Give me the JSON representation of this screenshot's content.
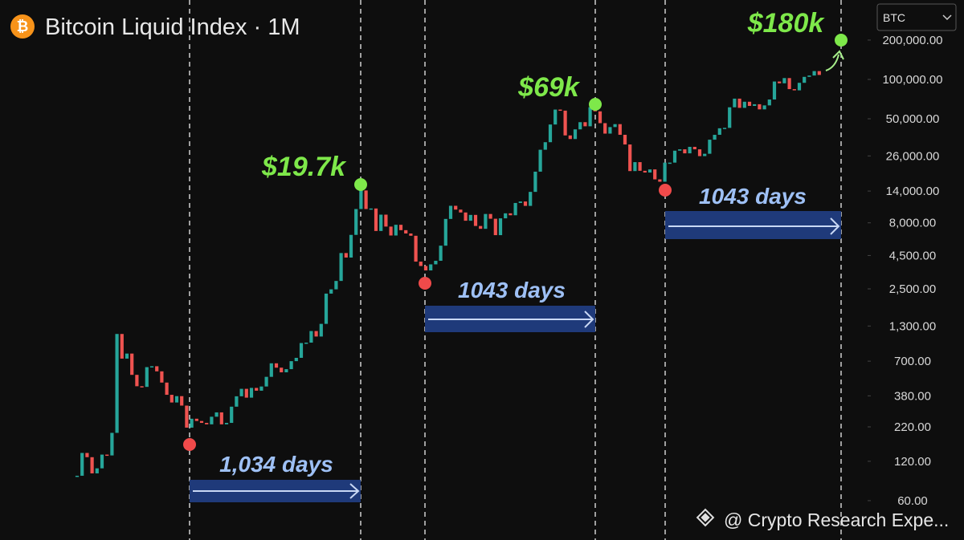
{
  "chart_data": {
    "type": "candlestick",
    "title": "Bitcoin Liquid Index · 1M",
    "symbol": "BTC",
    "watermark": "@ Crypto Research Expe...",
    "log_scale": true,
    "up_color": "#26a69a",
    "down_color": "#ef5350",
    "ylim": [
      30,
      405000
    ],
    "yticks": [
      {
        "value": 200000,
        "label": "200,000.00"
      },
      {
        "value": 100000,
        "label": "100,000.00"
      },
      {
        "value": 50000,
        "label": "50,000.00"
      },
      {
        "value": 26000,
        "label": "26,000.00"
      },
      {
        "value": 14000,
        "label": "14,000.00"
      },
      {
        "value": 8000,
        "label": "8,000.00"
      },
      {
        "value": 4500,
        "label": "4,500.00"
      },
      {
        "value": 2500,
        "label": "2,500.00"
      },
      {
        "value": 1300,
        "label": "1,300.00"
      },
      {
        "value": 700,
        "label": "700.00"
      },
      {
        "value": 380,
        "label": "380.00"
      },
      {
        "value": 220,
        "label": "220.00"
      },
      {
        "value": 120,
        "label": "120.00"
      },
      {
        "value": 60,
        "label": "60.00"
      }
    ],
    "values": [
      93,
      139,
      129,
      97,
      106,
      135,
      133,
      198,
      1130,
      732,
      800,
      550,
      450,
      445,
      630,
      640,
      585,
      480,
      387,
      338,
      378,
      320,
      217,
      254,
      244,
      236,
      230,
      263,
      284,
      230,
      236,
      314,
      377,
      430,
      368,
      437,
      416,
      448,
      531,
      674,
      624,
      575,
      608,
      700,
      742,
      963,
      970,
      1190,
      1080,
      1350,
      2300,
      2480,
      2875,
      4700,
      4340,
      6470,
      10200,
      14150,
      10200,
      10300,
      6930,
      9240,
      7490,
      6400,
      7730,
      7030,
      6630,
      6370,
      4040,
      3740,
      3460,
      3850,
      4100,
      5350,
      8570,
      10800,
      10100,
      9600,
      8300,
      9200,
      7570,
      7200,
      9350,
      8600,
      6440,
      8660,
      9460,
      9140,
      11350,
      11650,
      10780,
      13800,
      19700,
      28990,
      33100,
      45200,
      58800,
      57700,
      37300,
      35000,
      41500,
      47100,
      43800,
      61300,
      57000,
      46300,
      38500,
      43200,
      45500,
      37700,
      31800,
      19900,
      23300,
      20000,
      19400,
      20500,
      17200,
      16500,
      23100,
      23100,
      28500,
      29200,
      27200,
      30500,
      29200,
      25900,
      27000,
      34600,
      37700,
      42300,
      42600,
      61200,
      71300,
      60600,
      67500,
      62700,
      64600,
      59000,
      63300,
      70200,
      96400,
      93400,
      102400,
      84300,
      82500,
      94200,
      104600,
      107100,
      115800,
      108200
    ],
    "annotations": [
      "$180k",
      "$69k",
      "$19.7k",
      "1,034 days",
      "1043 days",
      "1043 days"
    ]
  }
}
